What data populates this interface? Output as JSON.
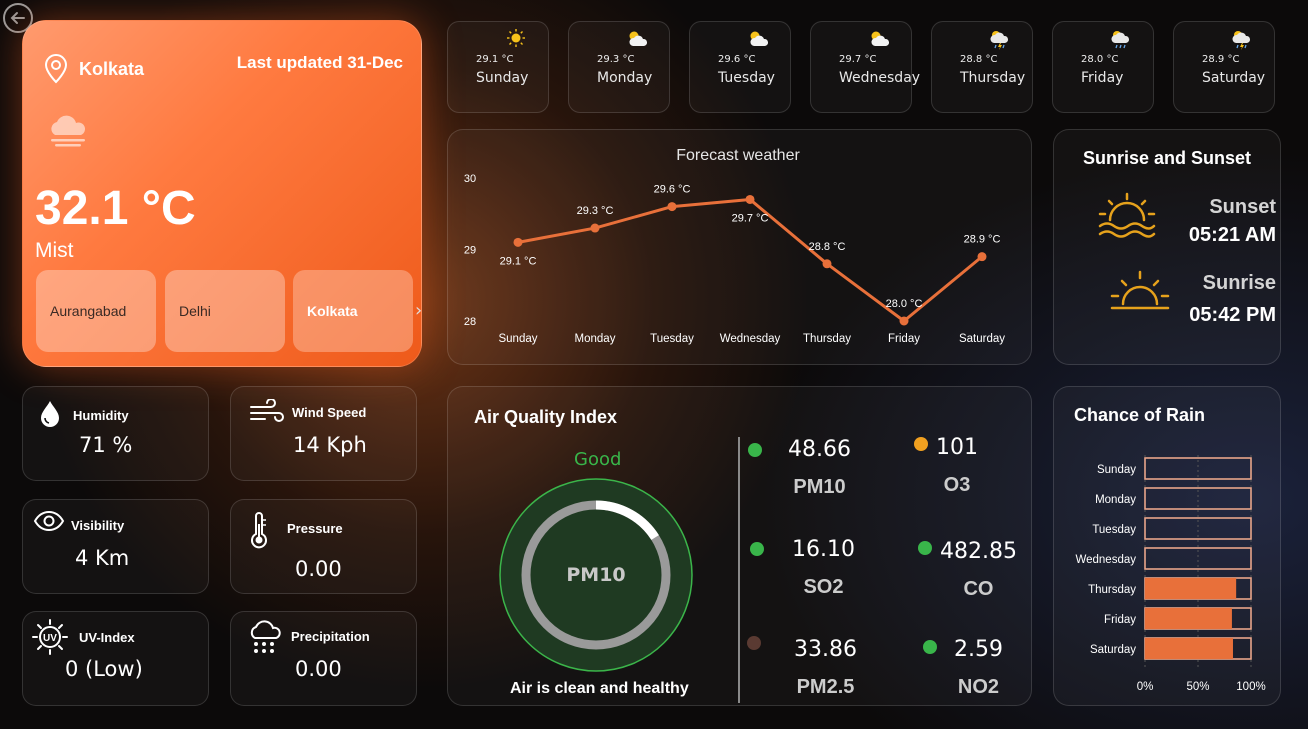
{
  "main": {
    "location": "Kolkata",
    "last_updated": "Last updated 31-Dec",
    "temperature": "32.1 °C",
    "condition": "Mist",
    "cities": [
      "Aurangabad",
      "Delhi",
      "Kolkata"
    ],
    "active_city": "Kolkata"
  },
  "days": [
    {
      "temp": "29.1 °C",
      "name": "Sunday",
      "icon": "sun-icon"
    },
    {
      "temp": "29.3 °C",
      "name": "Monday",
      "icon": "partly-cloudy-icon"
    },
    {
      "temp": "29.6 °C",
      "name": "Tuesday",
      "icon": "partly-cloudy-icon"
    },
    {
      "temp": "29.7 °C",
      "name": "Wednesday",
      "icon": "partly-cloudy-icon"
    },
    {
      "temp": "28.8 °C",
      "name": "Thursday",
      "icon": "thunder-shower-icon"
    },
    {
      "temp": "28.0 °C",
      "name": "Friday",
      "icon": "sun-shower-icon"
    },
    {
      "temp": "28.9 °C",
      "name": "Saturday",
      "icon": "thunder-shower-icon"
    }
  ],
  "chart_data": [
    {
      "type": "line",
      "title": "Forecast weather",
      "categories": [
        "Sunday",
        "Monday",
        "Tuesday",
        "Wednesday",
        "Thursday",
        "Friday",
        "Saturday"
      ],
      "values": [
        29.1,
        29.3,
        29.6,
        29.7,
        28.8,
        28.0,
        28.9
      ],
      "data_labels": [
        "29.1 °C",
        "29.3 °C",
        "29.6 °C",
        "29.7 °C",
        "28.8 °C",
        "28.0 °C",
        "28.9 °C"
      ],
      "ylim": [
        28,
        30
      ],
      "yticks": [
        "28",
        "29",
        "30"
      ],
      "color": "#e8703a"
    },
    {
      "type": "bar",
      "orientation": "horizontal",
      "title": "Chance of Rain",
      "categories": [
        "Sunday",
        "Monday",
        "Tuesday",
        "Wednesday",
        "Thursday",
        "Friday",
        "Saturday"
      ],
      "values": [
        0,
        0,
        0,
        0,
        86,
        82,
        83
      ],
      "xlim": [
        0,
        100
      ],
      "xticks": [
        "0%",
        "50%",
        "100%"
      ],
      "color": "#e8703a",
      "outline": "#e8a58a"
    }
  ],
  "sun": {
    "title": "Sunrise and Sunset",
    "sunset_label": "Sunset",
    "sunset_time": "05:21 AM",
    "sunrise_label": "Sunrise",
    "sunrise_time": "05:42 PM",
    "icon_color": "#e6a21c"
  },
  "stats": {
    "humidity": {
      "label": "Humidity",
      "value": "71 %"
    },
    "wind": {
      "label": "Wind Speed",
      "value": "14 Kph"
    },
    "visibility": {
      "label": "Visibility",
      "value": "4 Km"
    },
    "pressure": {
      "label": "Pressure",
      "value": "0.00"
    },
    "uv": {
      "label": "UV-Index",
      "value": "0 (Low)"
    },
    "precip": {
      "label": "Precipitation",
      "value": "0.00"
    }
  },
  "aqi": {
    "title": "Air Quality Index",
    "status": "Good",
    "gauge_label": "PM10",
    "gauge_fraction": 0.16,
    "message": "Air is clean and healthy",
    "good_color": "#39b54a",
    "pollutants": [
      {
        "name": "PM10",
        "value": "48.66",
        "color": "#39b54a"
      },
      {
        "name": "O3",
        "value": "101",
        "color": "#f0a020"
      },
      {
        "name": "SO2",
        "value": "16.10",
        "color": "#39b54a"
      },
      {
        "name": "CO",
        "value": "482.85",
        "color": "#39b54a"
      },
      {
        "name": "PM2.5",
        "value": "33.86",
        "color": "#5a3a32"
      },
      {
        "name": "NO2",
        "value": "2.59",
        "color": "#39b54a"
      }
    ]
  }
}
